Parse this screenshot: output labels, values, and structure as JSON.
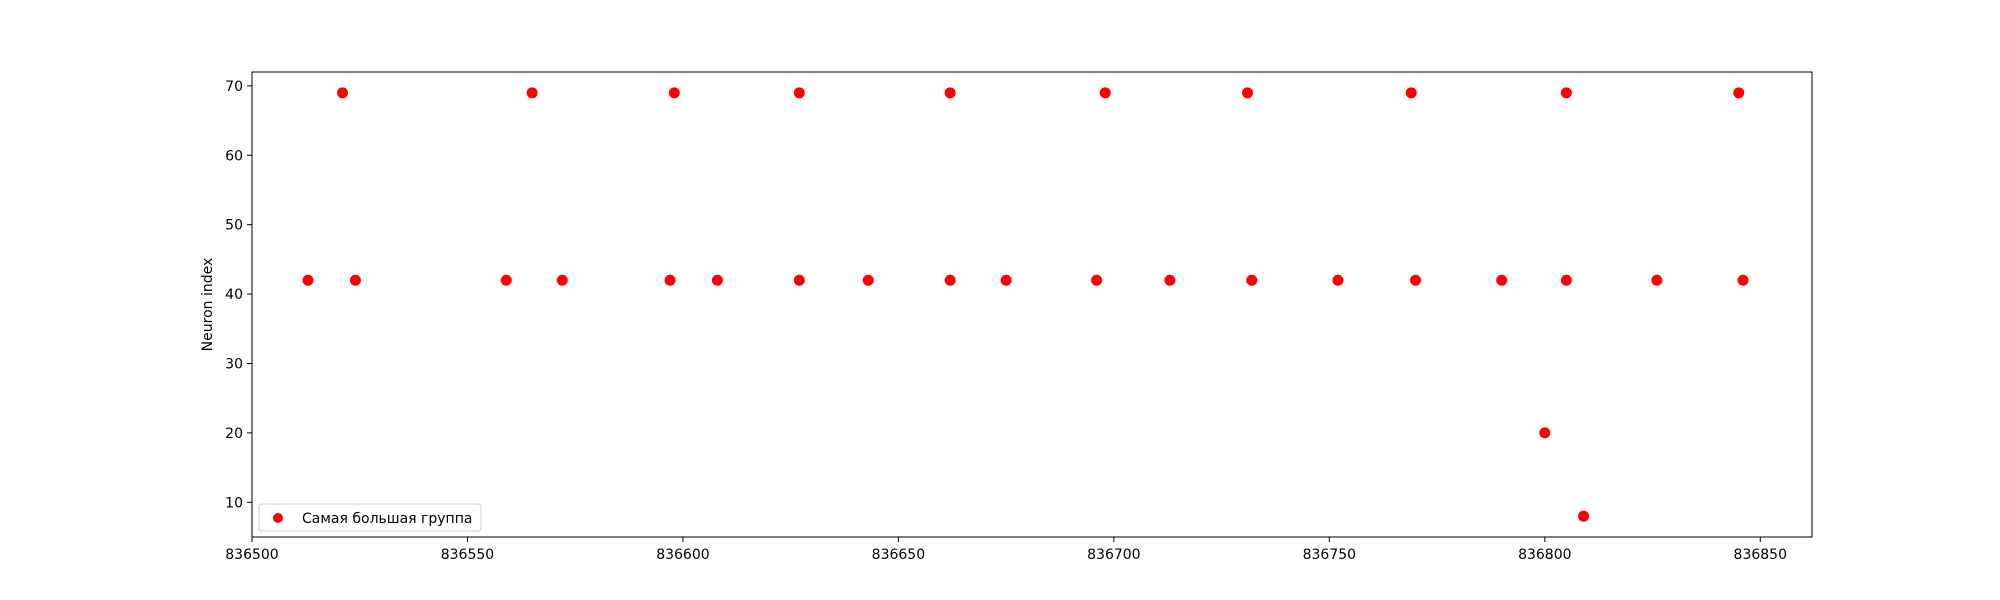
{
  "chart_data": {
    "type": "scatter",
    "title": "",
    "xlabel": "",
    "ylabel": "Neuron index",
    "xlim": [
      836500,
      836862
    ],
    "ylim": [
      5,
      72
    ],
    "xticks": [
      836500,
      836550,
      836600,
      836650,
      836700,
      836750,
      836800,
      836850
    ],
    "yticks": [
      10,
      20,
      30,
      40,
      50,
      60,
      70
    ],
    "grid": false,
    "legend_position": "lower-left",
    "series": [
      {
        "name": "Самая большая группа",
        "color": "#ff0000",
        "marker": "circle",
        "points": [
          {
            "x": 836513,
            "y": 42
          },
          {
            "x": 836521,
            "y": 69
          },
          {
            "x": 836524,
            "y": 42
          },
          {
            "x": 836559,
            "y": 42
          },
          {
            "x": 836565,
            "y": 69
          },
          {
            "x": 836572,
            "y": 42
          },
          {
            "x": 836597,
            "y": 42
          },
          {
            "x": 836598,
            "y": 69
          },
          {
            "x": 836608,
            "y": 42
          },
          {
            "x": 836627,
            "y": 69
          },
          {
            "x": 836627,
            "y": 42
          },
          {
            "x": 836643,
            "y": 42
          },
          {
            "x": 836662,
            "y": 69
          },
          {
            "x": 836662,
            "y": 42
          },
          {
            "x": 836675,
            "y": 42
          },
          {
            "x": 836696,
            "y": 42
          },
          {
            "x": 836698,
            "y": 69
          },
          {
            "x": 836713,
            "y": 42
          },
          {
            "x": 836731,
            "y": 69
          },
          {
            "x": 836732,
            "y": 42
          },
          {
            "x": 836752,
            "y": 42
          },
          {
            "x": 836769,
            "y": 69
          },
          {
            "x": 836770,
            "y": 42
          },
          {
            "x": 836790,
            "y": 42
          },
          {
            "x": 836800,
            "y": 20
          },
          {
            "x": 836805,
            "y": 69
          },
          {
            "x": 836805,
            "y": 42
          },
          {
            "x": 836809,
            "y": 8
          },
          {
            "x": 836826,
            "y": 42
          },
          {
            "x": 836845,
            "y": 69
          },
          {
            "x": 836846,
            "y": 42
          }
        ]
      }
    ]
  }
}
